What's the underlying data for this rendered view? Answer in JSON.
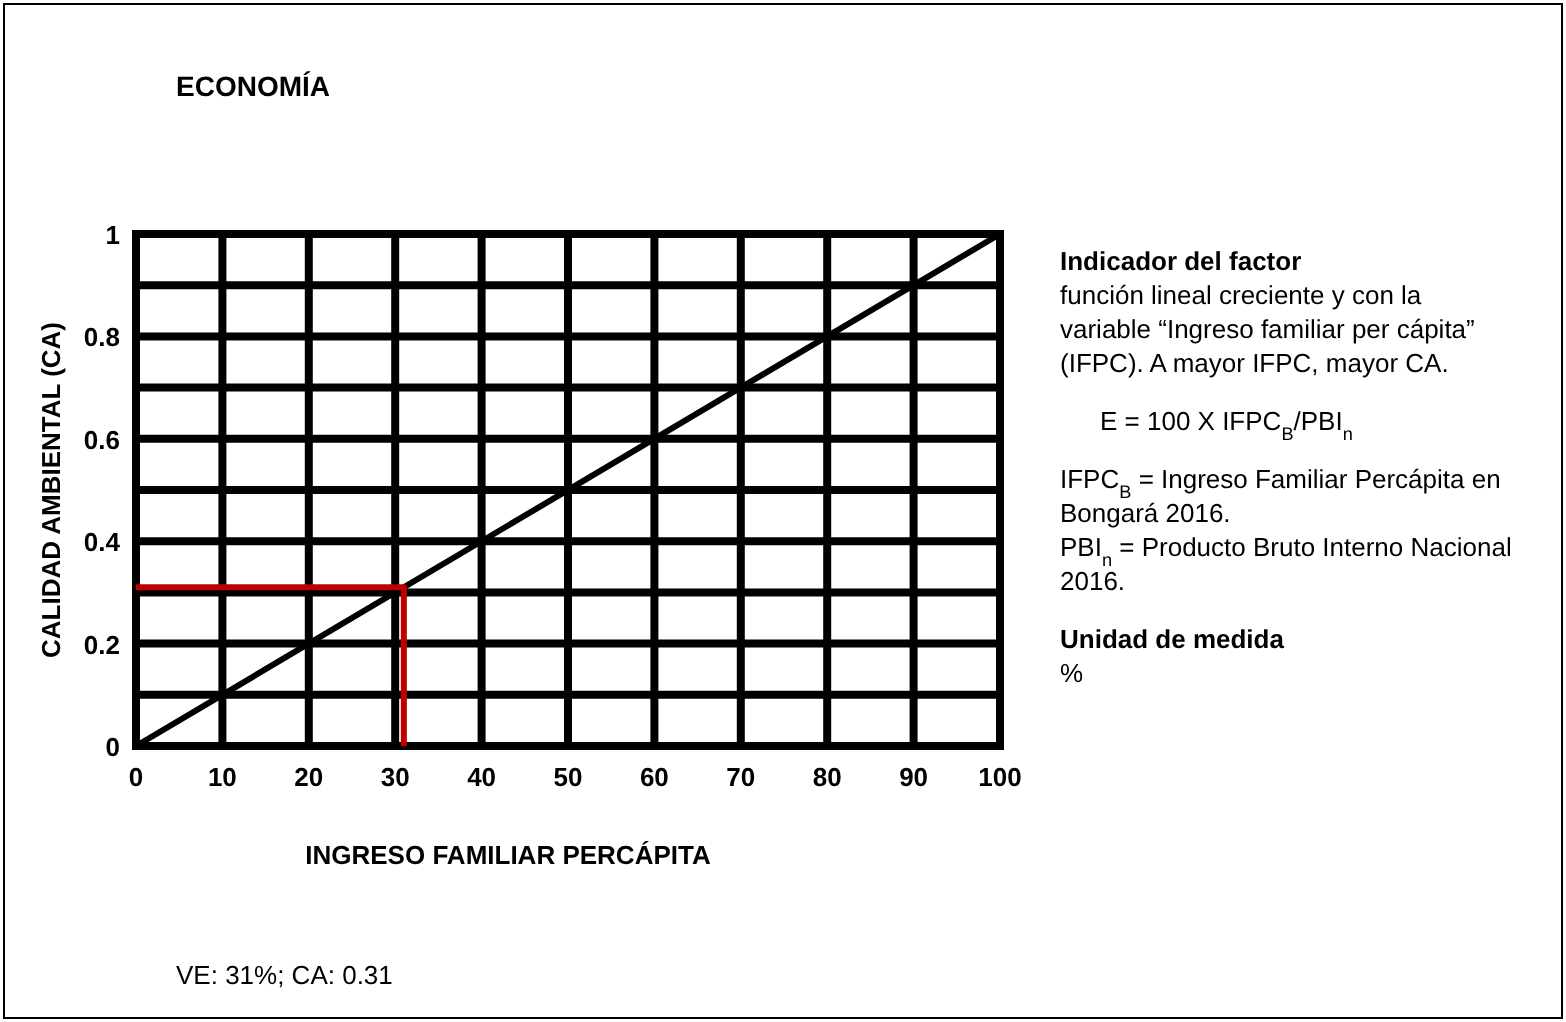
{
  "chart_data": {
    "type": "line",
    "title": "ECONOMÍA",
    "xlabel": "INGRESO FAMILIAR PERCÁPITA",
    "ylabel": "CALIDAD AMBIENTAL (CA)",
    "xlim": [
      0,
      100
    ],
    "ylim": [
      0,
      1
    ],
    "xticks": [
      0,
      10,
      20,
      30,
      40,
      50,
      60,
      70,
      80,
      90,
      100
    ],
    "yticks": [
      0,
      {
        "value": 0.1,
        "label": null
      },
      0.2,
      {
        "value": 0.3,
        "label": null
      },
      0.4,
      {
        "value": 0.5,
        "label": null
      },
      0.6,
      {
        "value": 0.7,
        "label": null
      },
      0.8,
      {
        "value": 0.9,
        "label": null
      },
      1
    ],
    "grid": true,
    "marker": "none",
    "line_style": "solid",
    "series": [
      {
        "color": "#000000",
        "x": [
          0,
          100
        ],
        "values": [
          0,
          1
        ]
      },
      {
        "color": "#c00000",
        "x": [
          0,
          31,
          31
        ],
        "values": [
          0.31,
          0.31,
          0
        ]
      }
    ],
    "annotations": [
      "Indicador del factor",
      "función lineal creciente y con la variable “Ingreso familiar per cápita” (IFPC). A mayor IFPC, mayor CA.",
      "E = 100 X IFPC$_{B}$/PBI$_{n}$",
      "IFPC$_{B}$ = Ingreso Familiar Percápita en Bongará 2016.",
      "PBI$_{n}$ = Producto Bruto Interno Nacional 2016.",
      "Unidad de medida",
      "%",
      "VE: 31%; CA: 0.31"
    ]
  }
}
